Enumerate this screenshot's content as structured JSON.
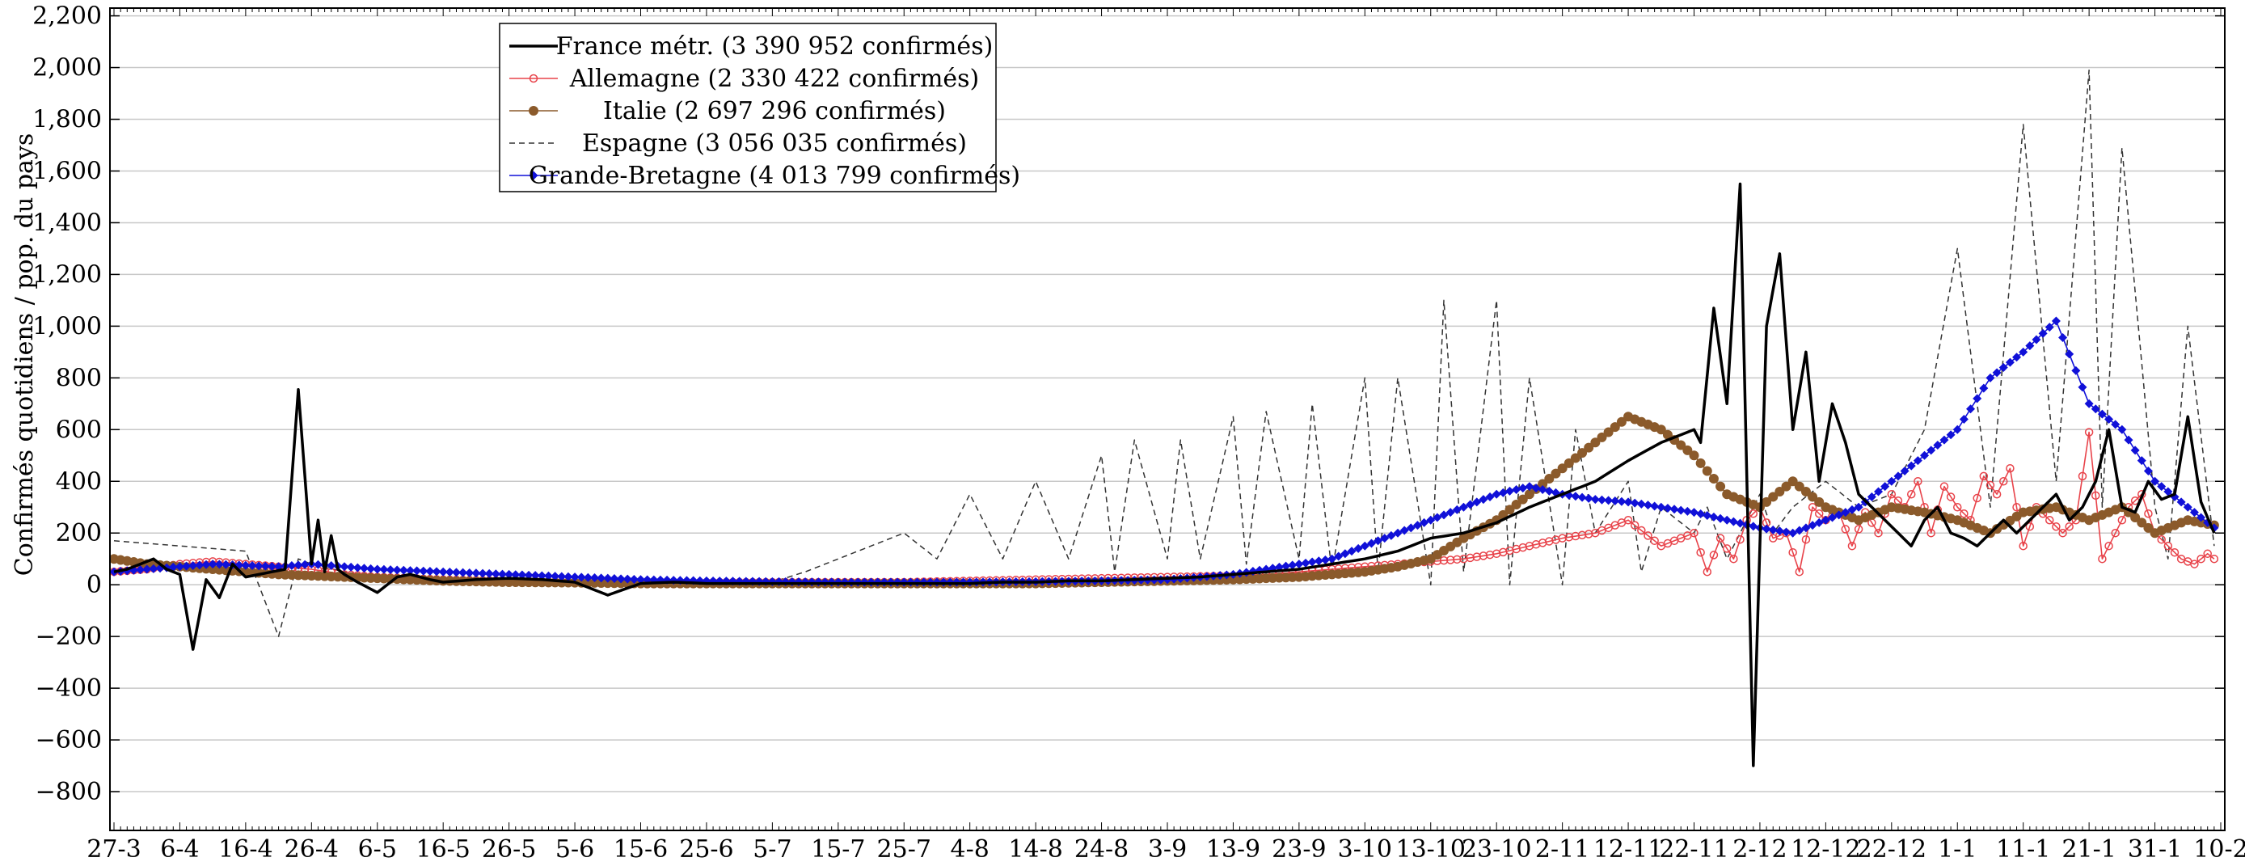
{
  "chart_data": {
    "type": "line",
    "xlabel": "",
    "ylabel": "Confirmés quotidiens / pop. du pays",
    "x_start_date": "2020-03-27",
    "num_days": 320,
    "ylim": [
      -950,
      2230
    ],
    "yticks": [
      -800,
      -600,
      -400,
      -200,
      0,
      200,
      400,
      600,
      800,
      1000,
      1200,
      1400,
      1600,
      1800,
      2000,
      2200
    ],
    "ytick_labels": [
      "−800",
      "−600",
      "−400",
      "−200",
      "0",
      "200",
      "400",
      "600",
      "800",
      "1,000",
      "1,200",
      "1,400",
      "1,600",
      "1,800",
      "2,000",
      "2,200"
    ],
    "xtick_labels": [
      "27-3",
      "6-4",
      "16-4",
      "26-4",
      "6-5",
      "16-5",
      "26-5",
      "5-6",
      "15-6",
      "25-6",
      "5-7",
      "15-7",
      "25-7",
      "4-8",
      "14-8",
      "24-8",
      "3-9",
      "13-9",
      "23-9",
      "3-10",
      "13-10",
      "23-10",
      "2-11",
      "12-11",
      "22-11",
      "2-12",
      "12-12",
      "22-12",
      "1-1",
      "11-1",
      "21-1",
      "31-1",
      "10-2"
    ],
    "grid": "horizontal",
    "legend_position": "top-left",
    "series": [
      {
        "name": "France métr. (3 390 952 confirmés)",
        "style": "solid-thick",
        "color": "#000000",
        "x": [
          0,
          2,
          4,
          6,
          8,
          10,
          12,
          14,
          16,
          18,
          20,
          22,
          24,
          26,
          28,
          30,
          31,
          32,
          33,
          34,
          35,
          37,
          40,
          43,
          45,
          48,
          50,
          55,
          60,
          65,
          70,
          75,
          80,
          85,
          90,
          95,
          100,
          105,
          110,
          115,
          120,
          125,
          130,
          135,
          140,
          145,
          150,
          155,
          160,
          165,
          170,
          175,
          180,
          185,
          190,
          195,
          200,
          205,
          210,
          215,
          220,
          225,
          230,
          235,
          240,
          241,
          243,
          245,
          247,
          249,
          251,
          253,
          255,
          257,
          259,
          261,
          263,
          265,
          267,
          269,
          271,
          273,
          275,
          277,
          279,
          281,
          283,
          285,
          287,
          289,
          291,
          293,
          295,
          297,
          299,
          301,
          303,
          305,
          307,
          309,
          311,
          313,
          315,
          317,
          319
        ],
        "y": [
          50,
          60,
          80,
          100,
          60,
          40,
          -250,
          20,
          -50,
          80,
          30,
          40,
          50,
          60,
          755,
          80,
          250,
          50,
          190,
          60,
          40,
          10,
          -30,
          30,
          40,
          20,
          10,
          20,
          25,
          20,
          10,
          -40,
          5,
          10,
          5,
          5,
          5,
          5,
          5,
          5,
          5,
          5,
          5,
          10,
          10,
          15,
          15,
          20,
          25,
          30,
          40,
          50,
          60,
          80,
          100,
          130,
          180,
          200,
          240,
          300,
          350,
          400,
          480,
          550,
          600,
          550,
          1070,
          700,
          1550,
          -700,
          1000,
          1280,
          600,
          900,
          400,
          700,
          550,
          350,
          300,
          250,
          200,
          150,
          250,
          300,
          200,
          180,
          150,
          200,
          250,
          200,
          250,
          300,
          350,
          250,
          300,
          400,
          600,
          300,
          280,
          400,
          330,
          350,
          650,
          320,
          200
        ],
        "markers": "none"
      },
      {
        "name": "Allemagne (2 330 422 confirmés)",
        "style": "solid-thin",
        "color": "#e8434a",
        "x": [
          0,
          5,
          10,
          15,
          20,
          25,
          30,
          35,
          40,
          50,
          60,
          70,
          80,
          90,
          100,
          110,
          120,
          130,
          140,
          150,
          160,
          170,
          175,
          180,
          185,
          190,
          195,
          200,
          205,
          210,
          215,
          220,
          225,
          230,
          235,
          240,
          242,
          244,
          246,
          248,
          250,
          252,
          254,
          256,
          258,
          260,
          262,
          264,
          266,
          268,
          270,
          272,
          274,
          276,
          278,
          280,
          282,
          284,
          286,
          288,
          290,
          292,
          294,
          296,
          298,
          300,
          302,
          304,
          306,
          308,
          310,
          312,
          314,
          316,
          318,
          319
        ],
        "y": [
          50,
          60,
          80,
          90,
          80,
          70,
          60,
          40,
          30,
          20,
          15,
          10,
          10,
          10,
          10,
          10,
          10,
          15,
          20,
          25,
          30,
          35,
          40,
          50,
          60,
          70,
          80,
          90,
          100,
          120,
          150,
          180,
          200,
          250,
          150,
          200,
          50,
          180,
          100,
          250,
          300,
          180,
          200,
          50,
          300,
          250,
          280,
          150,
          280,
          200,
          350,
          300,
          400,
          200,
          380,
          300,
          250,
          420,
          350,
          450,
          150,
          300,
          250,
          200,
          250,
          590,
          100,
          200,
          300,
          350,
          200,
          150,
          100,
          80,
          120,
          100
        ],
        "markers": "open-circle"
      },
      {
        "name": "Italie (2 697 296 confirmés)",
        "style": "solid-thin",
        "color": "#8b5a2b",
        "x": [
          0,
          5,
          10,
          15,
          20,
          25,
          30,
          35,
          40,
          50,
          60,
          70,
          80,
          90,
          100,
          110,
          120,
          130,
          140,
          150,
          160,
          170,
          175,
          180,
          185,
          190,
          195,
          200,
          205,
          210,
          215,
          220,
          225,
          230,
          235,
          240,
          245,
          250,
          255,
          260,
          265,
          270,
          275,
          280,
          285,
          290,
          295,
          300,
          305,
          310,
          315,
          319
        ],
        "y": [
          100,
          80,
          70,
          60,
          50,
          40,
          35,
          30,
          25,
          15,
          10,
          8,
          5,
          5,
          5,
          5,
          5,
          5,
          5,
          10,
          15,
          20,
          25,
          30,
          40,
          50,
          70,
          100,
          180,
          250,
          350,
          450,
          550,
          650,
          600,
          500,
          350,
          300,
          400,
          300,
          250,
          300,
          280,
          250,
          200,
          280,
          300,
          250,
          300,
          200,
          250,
          230
        ],
        "markers": "filled-circle"
      },
      {
        "name": "Espagne (3 056 035 confirmés)",
        "style": "dashed",
        "color": "#333333",
        "x": [
          0,
          5,
          10,
          15,
          20,
          25,
          28,
          30,
          35,
          40,
          50,
          60,
          70,
          80,
          90,
          100,
          105,
          110,
          115,
          120,
          125,
          130,
          135,
          140,
          145,
          150,
          152,
          155,
          160,
          162,
          165,
          170,
          172,
          175,
          180,
          182,
          185,
          190,
          192,
          195,
          200,
          202,
          205,
          210,
          212,
          215,
          220,
          222,
          225,
          230,
          232,
          235,
          240,
          242,
          245,
          250,
          252,
          255,
          260,
          265,
          270,
          275,
          280,
          285,
          290,
          295,
          300,
          302,
          305,
          310,
          312,
          315,
          319
        ],
        "y": [
          170,
          160,
          150,
          140,
          130,
          -200,
          100,
          80,
          50,
          30,
          20,
          15,
          10,
          10,
          10,
          10,
          50,
          100,
          150,
          200,
          100,
          350,
          100,
          400,
          100,
          500,
          50,
          560,
          100,
          560,
          100,
          650,
          80,
          670,
          100,
          700,
          50,
          800,
          50,
          800,
          0,
          1100,
          50,
          1100,
          0,
          800,
          0,
          600,
          200,
          400,
          50,
          300,
          200,
          300,
          100,
          350,
          200,
          300,
          400,
          300,
          350,
          600,
          1300,
          300,
          1780,
          400,
          1990,
          300,
          1690,
          300,
          100,
          1000,
          150
        ],
        "markers": "none"
      },
      {
        "name": "Grande-Bretagne (4 013 799 confirmés)",
        "style": "solid-thin",
        "color": "#1010d8",
        "x": [
          0,
          5,
          10,
          15,
          20,
          25,
          30,
          35,
          40,
          50,
          60,
          70,
          80,
          90,
          100,
          110,
          120,
          130,
          140,
          150,
          160,
          170,
          175,
          180,
          185,
          190,
          195,
          200,
          205,
          210,
          215,
          220,
          225,
          230,
          235,
          240,
          245,
          250,
          255,
          260,
          265,
          270,
          275,
          280,
          285,
          290,
          295,
          300,
          305,
          310,
          315,
          319
        ],
        "y": [
          50,
          60,
          70,
          80,
          75,
          70,
          80,
          70,
          60,
          50,
          40,
          30,
          20,
          15,
          12,
          10,
          10,
          10,
          12,
          15,
          20,
          40,
          60,
          80,
          100,
          150,
          200,
          250,
          300,
          350,
          380,
          350,
          330,
          320,
          300,
          280,
          250,
          220,
          200,
          250,
          300,
          400,
          500,
          600,
          800,
          900,
          1020,
          700,
          600,
          400,
          300,
          220
        ],
        "markers": "filled-diamond"
      }
    ]
  }
}
